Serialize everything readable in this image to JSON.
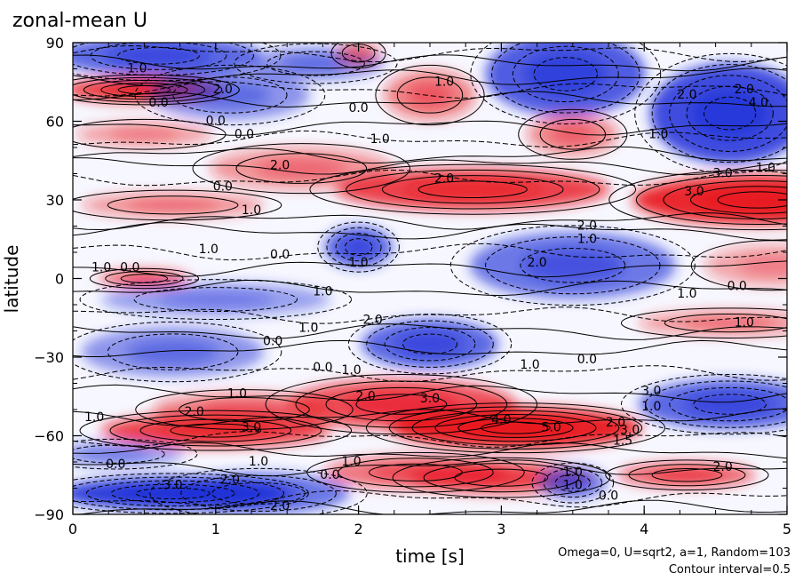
{
  "chart_data": {
    "type": "heatmap",
    "title": "zonal-mean U",
    "xlabel": "time [s]",
    "ylabel": "latitude",
    "xlim": [
      0,
      5
    ],
    "ylim": [
      -90,
      90
    ],
    "xticks": [
      0,
      1,
      2,
      3,
      4,
      5
    ],
    "xtick_labels": [
      "0",
      "1",
      "2",
      "3",
      "4",
      "5"
    ],
    "yticks": [
      -90,
      -60,
      -30,
      0,
      30,
      60,
      90
    ],
    "ytick_labels": [
      "−90",
      "−60",
      "−30",
      "0",
      "30",
      "60",
      "90"
    ],
    "annotations": [
      "Omega=0, U=sqrt2, a=1, Random=103",
      "Contour interval=0.5"
    ],
    "contour_labels": [
      {
        "x": 1.05,
        "y": 72,
        "text": "2.0"
      },
      {
        "x": 0.6,
        "y": 67,
        "text": "0.0"
      },
      {
        "x": 0.45,
        "y": 80,
        "text": "1.0"
      },
      {
        "x": 1.0,
        "y": 60,
        "text": "0.0"
      },
      {
        "x": 1.2,
        "y": 55,
        "text": "0.0"
      },
      {
        "x": 2.0,
        "y": 65,
        "text": "0.0"
      },
      {
        "x": 2.6,
        "y": 75,
        "text": "1.0"
      },
      {
        "x": 2.15,
        "y": 53,
        "text": "1.0"
      },
      {
        "x": 1.45,
        "y": 43,
        "text": "2.0"
      },
      {
        "x": 1.05,
        "y": 35,
        "text": "0.0"
      },
      {
        "x": 2.6,
        "y": 38,
        "text": "2.0"
      },
      {
        "x": 1.25,
        "y": 26,
        "text": "1.0"
      },
      {
        "x": 4.1,
        "y": 55,
        "text": "1.0"
      },
      {
        "x": 4.3,
        "y": 70,
        "text": "2.0"
      },
      {
        "x": 4.7,
        "y": 72,
        "text": "2.0"
      },
      {
        "x": 4.8,
        "y": 67,
        "text": "4.0"
      },
      {
        "x": 4.55,
        "y": 40,
        "text": "3.0"
      },
      {
        "x": 4.35,
        "y": 33,
        "text": "3.0"
      },
      {
        "x": 4.85,
        "y": 42,
        "text": "1.0"
      },
      {
        "x": 3.6,
        "y": 20,
        "text": "2.0"
      },
      {
        "x": 3.6,
        "y": 15,
        "text": "1.0"
      },
      {
        "x": 0.95,
        "y": 11,
        "text": "1.0"
      },
      {
        "x": 1.45,
        "y": 9,
        "text": "0.0"
      },
      {
        "x": 2.0,
        "y": 6,
        "text": "1.0"
      },
      {
        "x": 3.25,
        "y": 6,
        "text": "2.0"
      },
      {
        "x": 0.4,
        "y": 4,
        "text": "0.0"
      },
      {
        "x": 0.2,
        "y": 4,
        "text": "1.0"
      },
      {
        "x": 1.75,
        "y": -5,
        "text": "1.0"
      },
      {
        "x": 4.3,
        "y": -6,
        "text": "1.0"
      },
      {
        "x": 4.65,
        "y": -3,
        "text": "0.0"
      },
      {
        "x": 2.1,
        "y": -16,
        "text": "2.0"
      },
      {
        "x": 1.65,
        "y": -19,
        "text": "1.0"
      },
      {
        "x": 1.4,
        "y": -24,
        "text": "0.0"
      },
      {
        "x": 4.7,
        "y": -17,
        "text": "1.0"
      },
      {
        "x": 3.2,
        "y": -33,
        "text": "1.0"
      },
      {
        "x": 3.6,
        "y": -31,
        "text": "0.0"
      },
      {
        "x": 1.75,
        "y": -34,
        "text": "0.0"
      },
      {
        "x": 1.95,
        "y": -35,
        "text": "1.0"
      },
      {
        "x": 1.15,
        "y": -44,
        "text": "1.0"
      },
      {
        "x": 2.05,
        "y": -45,
        "text": "2.0"
      },
      {
        "x": 2.5,
        "y": -46,
        "text": "3.0"
      },
      {
        "x": 0.85,
        "y": -51,
        "text": "2.0"
      },
      {
        "x": 1.25,
        "y": -57,
        "text": "3.0"
      },
      {
        "x": 0.15,
        "y": -53,
        "text": "1.0"
      },
      {
        "x": 3.0,
        "y": -54,
        "text": "4.0"
      },
      {
        "x": 3.35,
        "y": -57,
        "text": "5.0"
      },
      {
        "x": 4.05,
        "y": -43,
        "text": "3.0"
      },
      {
        "x": 4.05,
        "y": -49,
        "text": "1.0"
      },
      {
        "x": 3.8,
        "y": -55,
        "text": "2.0"
      },
      {
        "x": 3.9,
        "y": -58,
        "text": "3.0"
      },
      {
        "x": 3.85,
        "y": -62,
        "text": "1.5"
      },
      {
        "x": 1.3,
        "y": -70,
        "text": "1.0"
      },
      {
        "x": 1.95,
        "y": -70,
        "text": "1.0"
      },
      {
        "x": 1.8,
        "y": -75,
        "text": "0.0"
      },
      {
        "x": 0.3,
        "y": -71,
        "text": "0.0"
      },
      {
        "x": 0.7,
        "y": -79,
        "text": "3.0"
      },
      {
        "x": 1.1,
        "y": -77,
        "text": "2.0"
      },
      {
        "x": 1.45,
        "y": -87,
        "text": "2.0"
      },
      {
        "x": 3.5,
        "y": -74,
        "text": "1.0"
      },
      {
        "x": 3.5,
        "y": -79,
        "text": "1.0"
      },
      {
        "x": 3.75,
        "y": -83,
        "text": "0.0"
      },
      {
        "x": 4.55,
        "y": -72,
        "text": "2.0"
      }
    ],
    "fields": [
      {
        "t": 0.5,
        "lat": 72,
        "v": 4.5,
        "sx": 0.35,
        "sy": 3
      },
      {
        "t": 1.1,
        "lat": 70,
        "v": -2.0,
        "sx": 0.35,
        "sy": 6
      },
      {
        "t": 0.6,
        "lat": 85,
        "v": -3.5,
        "sx": 0.45,
        "sy": 5
      },
      {
        "t": 1.7,
        "lat": 82,
        "v": -2.0,
        "sx": 0.3,
        "sy": 4
      },
      {
        "t": 3.45,
        "lat": 78,
        "v": -4.0,
        "sx": 0.35,
        "sy": 10
      },
      {
        "t": 4.6,
        "lat": 63,
        "v": -4.5,
        "sx": 0.35,
        "sy": 12
      },
      {
        "t": 2.5,
        "lat": 70,
        "v": 2.0,
        "sx": 0.2,
        "sy": 6
      },
      {
        "t": 2.0,
        "lat": 86,
        "v": 1.5,
        "sx": 0.1,
        "sy": 3
      },
      {
        "t": 3.5,
        "lat": 55,
        "v": 1.8,
        "sx": 0.2,
        "sy": 5
      },
      {
        "t": 0.5,
        "lat": 55,
        "v": 1.2,
        "sx": 0.3,
        "sy": 3
      },
      {
        "t": 2.8,
        "lat": 34,
        "v": 4.0,
        "sx": 0.6,
        "sy": 5
      },
      {
        "t": 4.8,
        "lat": 30,
        "v": 5.0,
        "sx": 0.55,
        "sy": 6
      },
      {
        "t": 1.6,
        "lat": 42,
        "v": 1.5,
        "sx": 0.4,
        "sy": 5
      },
      {
        "t": 0.7,
        "lat": 28,
        "v": 1.5,
        "sx": 0.4,
        "sy": 3
      },
      {
        "t": 2.0,
        "lat": 12,
        "v": -3.5,
        "sx": 0.15,
        "sy": 5
      },
      {
        "t": 3.5,
        "lat": 5,
        "v": -3.0,
        "sx": 0.45,
        "sy": 8
      },
      {
        "t": 2.5,
        "lat": -25,
        "v": -3.5,
        "sx": 0.3,
        "sy": 6
      },
      {
        "t": 0.5,
        "lat": 0,
        "v": 3.0,
        "sx": 0.2,
        "sy": 2
      },
      {
        "t": 1.0,
        "lat": -8,
        "v": -1.5,
        "sx": 0.5,
        "sy": 4
      },
      {
        "t": 0.7,
        "lat": -28,
        "v": -2.0,
        "sx": 0.4,
        "sy": 6
      },
      {
        "t": 4.6,
        "lat": -17,
        "v": 1.5,
        "sx": 0.4,
        "sy": 3
      },
      {
        "t": 4.6,
        "lat": -48,
        "v": -3.5,
        "sx": 0.4,
        "sy": 6
      },
      {
        "t": 3.1,
        "lat": -57,
        "v": 5.5,
        "sx": 0.55,
        "sy": 5
      },
      {
        "t": 2.3,
        "lat": -48,
        "v": 3.5,
        "sx": 0.5,
        "sy": 6
      },
      {
        "t": 1.0,
        "lat": -58,
        "v": 4.0,
        "sx": 0.5,
        "sy": 4
      },
      {
        "t": 1.2,
        "lat": -50,
        "v": 2.0,
        "sx": 0.4,
        "sy": 4
      },
      {
        "t": 0.7,
        "lat": -82,
        "v": -5.0,
        "sx": 0.5,
        "sy": 4
      },
      {
        "t": 1.3,
        "lat": -82,
        "v": -3.0,
        "sx": 0.4,
        "sy": 5
      },
      {
        "t": 3.0,
        "lat": -76,
        "v": 3.0,
        "sx": 0.4,
        "sy": 4
      },
      {
        "t": 2.4,
        "lat": -74,
        "v": 2.5,
        "sx": 0.4,
        "sy": 4
      },
      {
        "t": 4.3,
        "lat": -75,
        "v": 3.0,
        "sx": 0.3,
        "sy": 3
      },
      {
        "t": 3.5,
        "lat": -78,
        "v": -2.5,
        "sx": 0.15,
        "sy": 4
      },
      {
        "t": 0.3,
        "lat": -67,
        "v": -1.5,
        "sx": 0.3,
        "sy": 3
      },
      {
        "t": 4.9,
        "lat": 5,
        "v": 1.0,
        "sx": 0.3,
        "sy": 5
      }
    ],
    "colors": {
      "positive": "#e8141c",
      "negative": "#1e2fd8",
      "zero": "#ffffff"
    }
  }
}
